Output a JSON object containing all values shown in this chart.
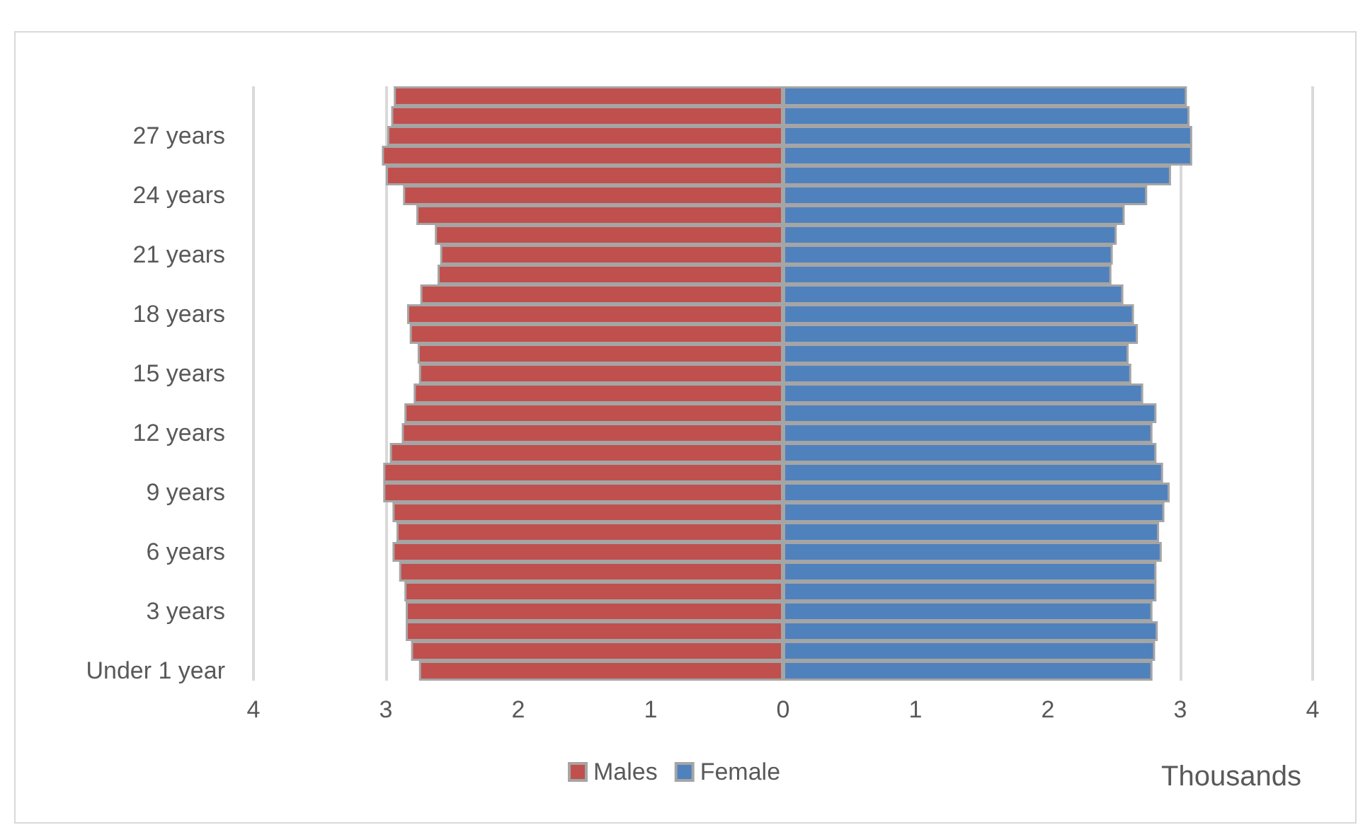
{
  "chart_data": {
    "type": "bar",
    "orientation": "horizontal",
    "xlabel": "Thousands",
    "categories": [
      null,
      null,
      "27 years",
      null,
      null,
      "24 years",
      null,
      null,
      "21 years",
      null,
      null,
      "18 years",
      null,
      null,
      "15 years",
      null,
      null,
      "12 years",
      null,
      null,
      "9 years",
      null,
      null,
      "6 years",
      null,
      null,
      "3 years",
      null,
      null,
      "Under 1 year"
    ],
    "series": [
      {
        "name": "Males",
        "color": "#c0504d",
        "values": [
          -2.94,
          -2.96,
          -2.99,
          -3.03,
          -3.0,
          -2.87,
          -2.77,
          -2.63,
          -2.59,
          -2.61,
          -2.74,
          -2.84,
          -2.82,
          -2.76,
          -2.75,
          -2.79,
          -2.86,
          -2.88,
          -2.97,
          -3.02,
          -3.02,
          -2.95,
          -2.92,
          -2.95,
          -2.9,
          -2.86,
          -2.85,
          -2.85,
          -2.81,
          -2.75
        ]
      },
      {
        "name": "Female",
        "color": "#4f81bd",
        "values": [
          3.05,
          3.07,
          3.09,
          3.09,
          2.93,
          2.75,
          2.58,
          2.52,
          2.49,
          2.48,
          2.57,
          2.65,
          2.68,
          2.61,
          2.63,
          2.72,
          2.82,
          2.79,
          2.82,
          2.87,
          2.92,
          2.88,
          2.84,
          2.86,
          2.82,
          2.82,
          2.79,
          2.83,
          2.81,
          2.79
        ]
      }
    ],
    "xlim": [
      -4,
      4
    ],
    "xticks": [
      {
        "value": -4,
        "label": "4"
      },
      {
        "value": -3,
        "label": "3"
      },
      {
        "value": -2,
        "label": "2"
      },
      {
        "value": -1,
        "label": "1"
      },
      0,
      1,
      2,
      3,
      4
    ],
    "grid": "x",
    "legend": "bottom",
    "stacked": true
  }
}
